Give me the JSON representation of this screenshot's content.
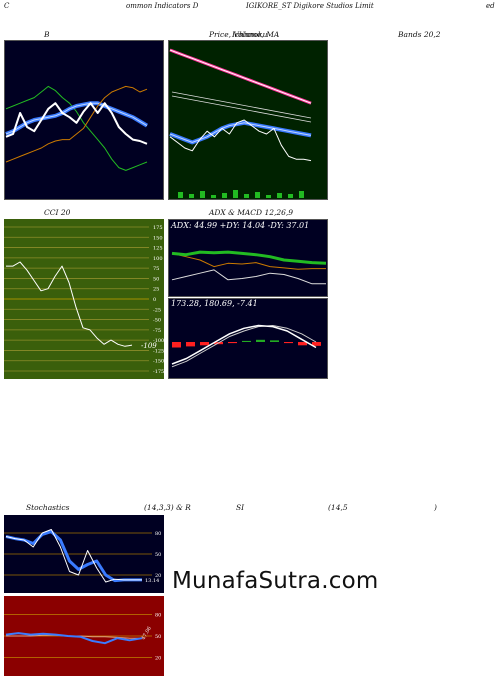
{
  "header": {
    "left": "ommon  Indicators D",
    "mid": "IGIKORE_ST Digikore   Studios Limit",
    "right": "ed",
    "c": "C"
  },
  "labels": {
    "b": "B",
    "price": "Price,  Volume,  MA",
    "price_overlay": "Ichimoku",
    "bands": "Bands 20,2",
    "cci": "CCI 20",
    "adx_macd": "ADX  & MACD 12,26,9",
    "stoch": "Stochastics",
    "stoch_params": "(14,3,3) & R",
    "rsi": "SI",
    "rsi_params": "(14,5",
    "rsi_close": ")"
  },
  "texts": {
    "adx_line": "ADX: 44.99  +DY: 14.04  -DY: 37.01",
    "macd_line": "173.28,  180.69,  -7.41",
    "cci_value": "-109",
    "stoch_value": "13.14",
    "rsi_value": "47.06"
  },
  "brand": "MunafaSutra.com",
  "colors": {
    "navy": "#000022",
    "green_bg": "#002200",
    "cci_bg": "#3a5f0b",
    "rsi_bg": "#8b0000",
    "blue": "#3a7bff",
    "orange": "#cc7a00",
    "green_line": "#22bb22"
  },
  "chart_data": [
    {
      "type": "line",
      "panel": "bollinger",
      "series": [
        {
          "values": [
            58,
            60,
            62,
            64,
            66,
            70,
            74,
            71,
            66,
            62,
            56,
            48,
            42,
            36,
            30,
            22,
            16,
            14,
            16,
            18,
            20
          ]
        },
        {
          "values": [
            40,
            42,
            45,
            48,
            50,
            51,
            52,
            53,
            55,
            58,
            60,
            61,
            62,
            62,
            60,
            58,
            56,
            54,
            52,
            49,
            46
          ]
        },
        {
          "values": [
            20,
            22,
            24,
            26,
            28,
            30,
            33,
            35,
            36,
            36,
            40,
            44,
            52,
            60,
            66,
            70,
            72,
            74,
            73,
            70,
            72
          ]
        },
        {
          "values": [
            38,
            40,
            55,
            45,
            42,
            50,
            58,
            62,
            55,
            52,
            48,
            56,
            62,
            55,
            62,
            55,
            45,
            40,
            36,
            35,
            33
          ]
        }
      ]
    },
    {
      "type": "line",
      "panel": "price",
      "series": [
        {
          "values": [
            100,
            98,
            96,
            94,
            92,
            90,
            88,
            86,
            84,
            82,
            80,
            78,
            76,
            74,
            72,
            70,
            68,
            66,
            64,
            62
          ]
        },
        {
          "values": [
            40,
            38,
            36,
            34,
            36,
            38,
            41,
            44,
            46,
            47,
            48,
            47,
            46,
            45,
            44,
            43,
            42,
            41,
            40,
            39
          ]
        },
        {
          "values": [
            38,
            34,
            30,
            28,
            36,
            42,
            38,
            44,
            40,
            48,
            50,
            46,
            42,
            40,
            44,
            32,
            24,
            22,
            22,
            21
          ]
        }
      ]
    },
    {
      "type": "line",
      "panel": "cci",
      "ylim": [
        -175,
        175
      ],
      "yticks": [
        175,
        150,
        125,
        100,
        75,
        50,
        25,
        0,
        -25,
        -50,
        -75,
        -100,
        -125,
        -150,
        -175
      ],
      "series": [
        {
          "values": [
            80,
            80,
            90,
            70,
            45,
            20,
            25,
            55,
            80,
            40,
            -20,
            -70,
            -75,
            -95,
            -110,
            -100,
            -110,
            -115,
            -112
          ]
        }
      ]
    },
    {
      "type": "line",
      "panel": "adx",
      "series": [
        {
          "values": [
            60,
            58,
            62,
            61,
            62,
            60,
            58,
            55,
            50,
            48,
            46,
            45
          ]
        },
        {
          "values": [
            60,
            55,
            50,
            40,
            45,
            44,
            46,
            40,
            38,
            36,
            37,
            37
          ]
        },
        {
          "values": [
            20,
            25,
            30,
            35,
            20,
            22,
            25,
            30,
            28,
            22,
            14,
            14
          ]
        }
      ]
    },
    {
      "type": "line",
      "panel": "macd",
      "series": [
        {
          "values": [
            -40,
            -30,
            -15,
            0,
            15,
            25,
            30,
            28,
            20,
            5,
            -10
          ]
        },
        {
          "values": [
            -45,
            -35,
            -20,
            -5,
            10,
            20,
            28,
            30,
            25,
            15,
            0
          ]
        }
      ],
      "histogram": [
        -10,
        -8,
        -6,
        -4,
        -2,
        2,
        4,
        3,
        -2,
        -6,
        -7
      ]
    },
    {
      "type": "line",
      "panel": "stochastics",
      "ylim": [
        0,
        100
      ],
      "yticks": [
        20,
        50,
        80
      ],
      "series": [
        {
          "values": [
            75,
            72,
            70,
            65,
            78,
            82,
            70,
            40,
            28,
            35,
            40,
            20,
            12,
            13,
            13,
            13
          ]
        },
        {
          "values": [
            75,
            72,
            70,
            60,
            80,
            85,
            60,
            25,
            20,
            55,
            30,
            10,
            14,
            13,
            13,
            13
          ]
        }
      ]
    },
    {
      "type": "line",
      "panel": "rsi",
      "ylim": [
        0,
        100
      ],
      "yticks": [
        20,
        50,
        80
      ],
      "series": [
        {
          "values": [
            50,
            50,
            50,
            51,
            51,
            50,
            50,
            49,
            49,
            48,
            47,
            47
          ]
        },
        {
          "values": [
            52,
            54,
            52,
            53,
            52,
            50,
            49,
            43,
            40,
            47,
            44,
            47
          ]
        }
      ]
    }
  ]
}
